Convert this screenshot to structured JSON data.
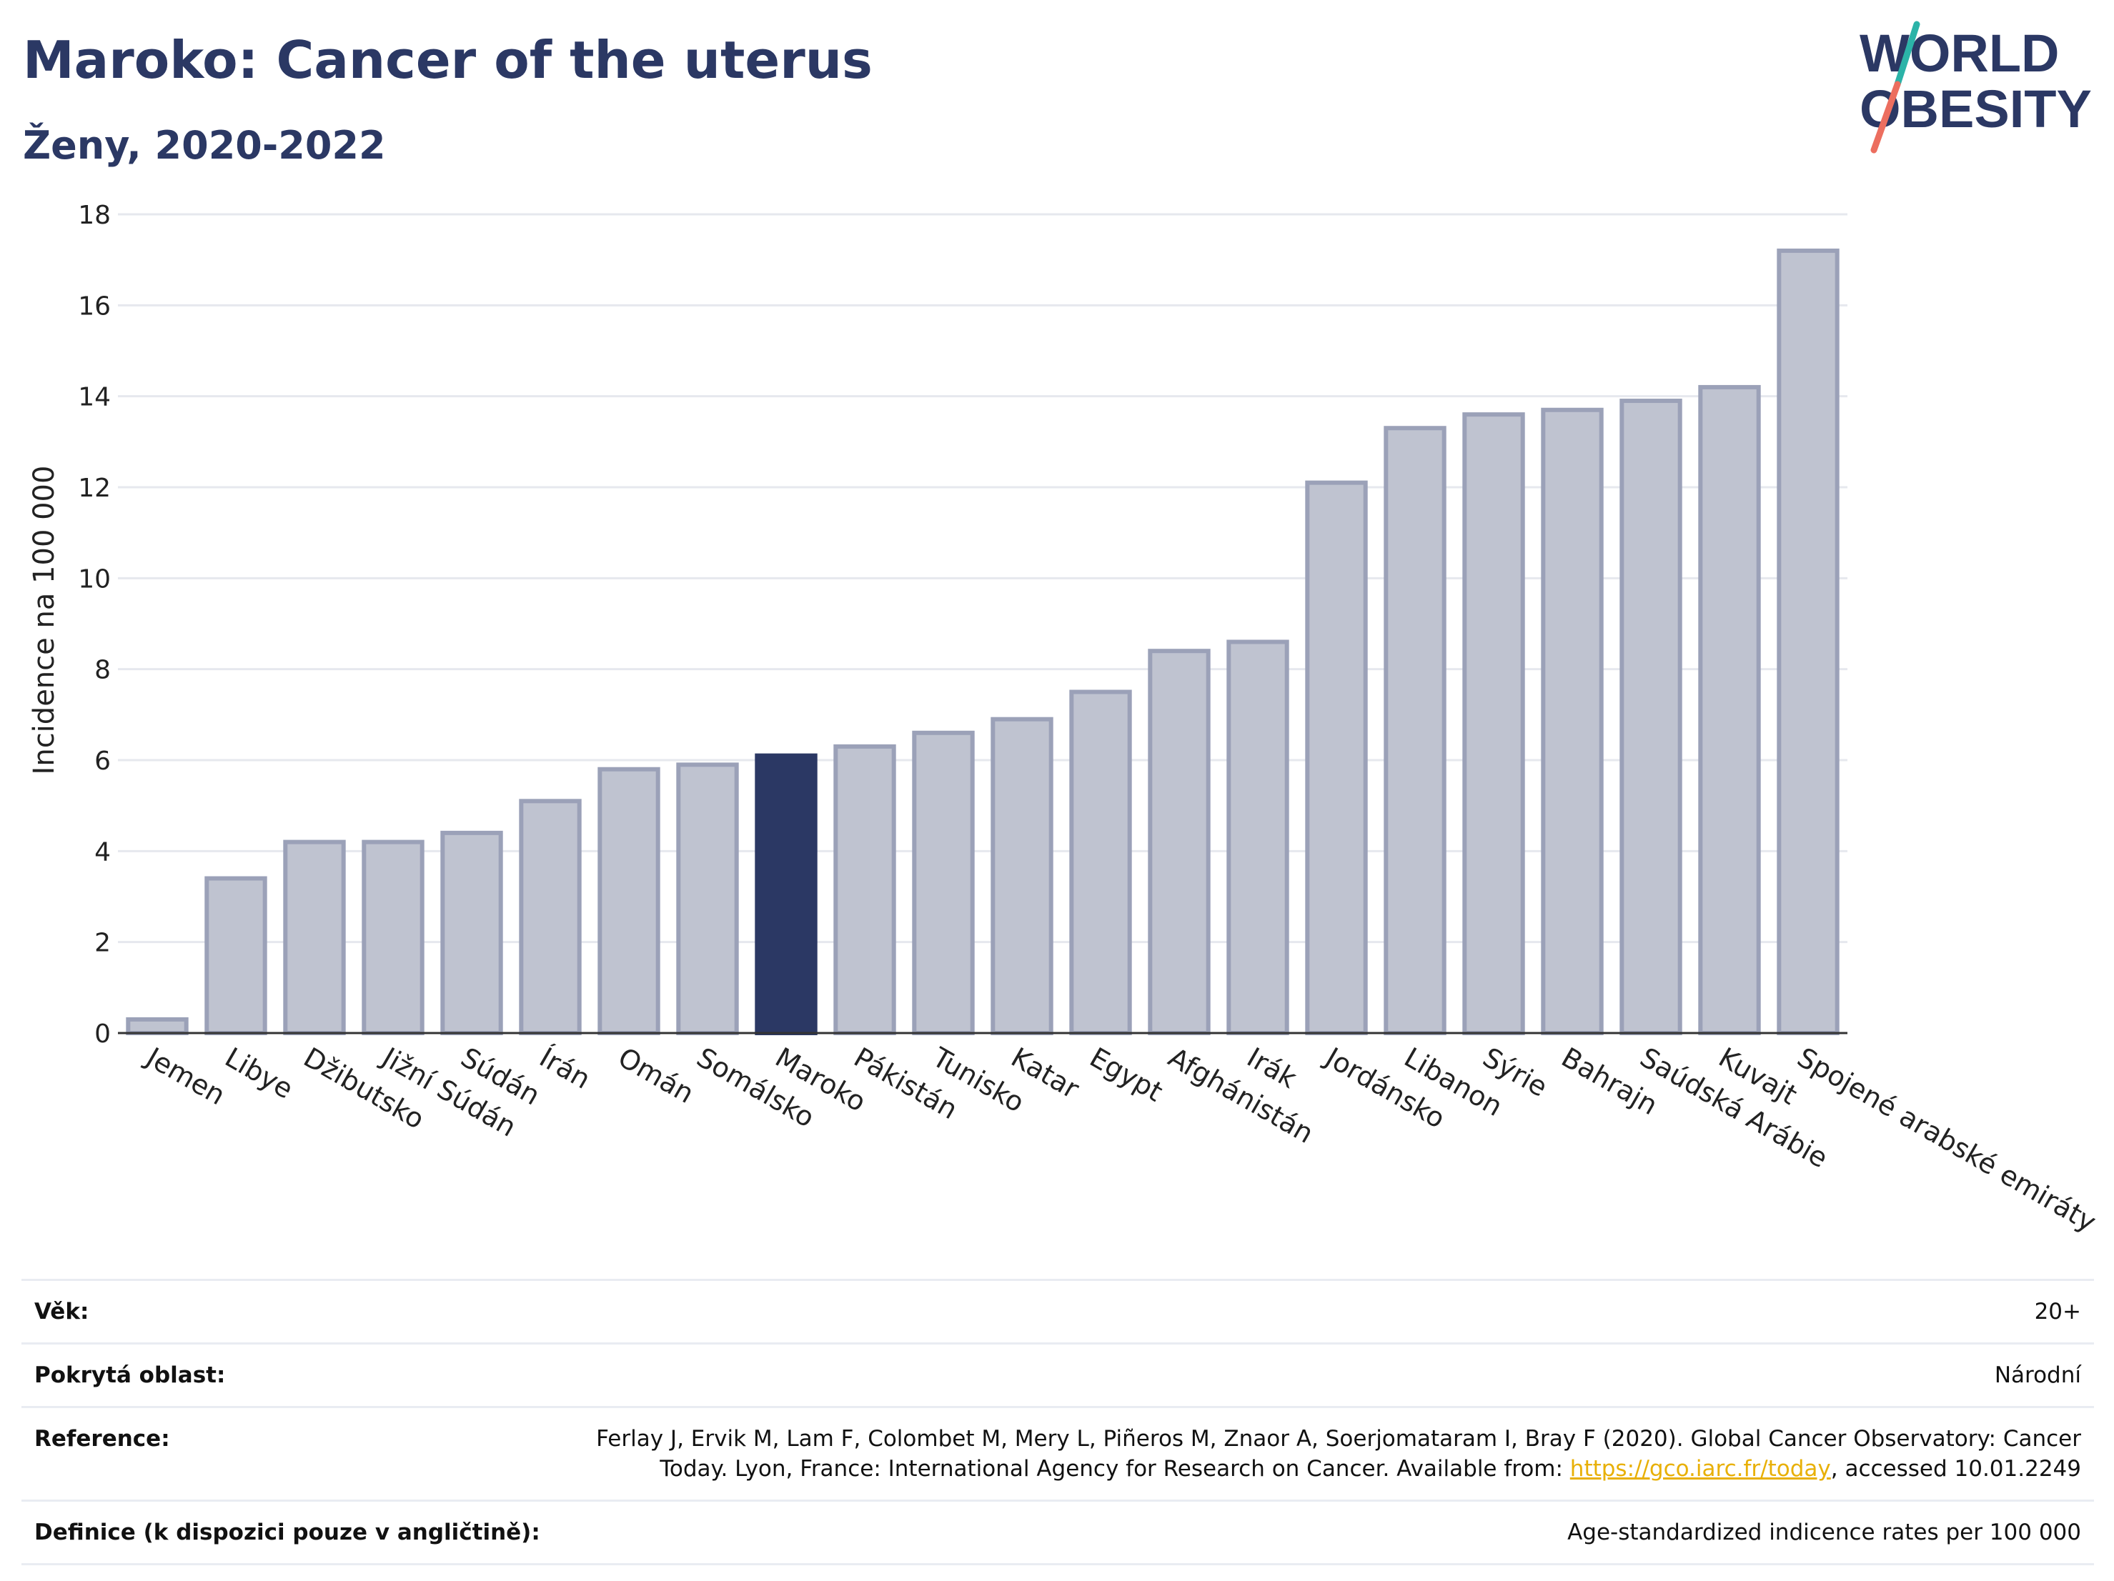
{
  "header": {
    "title": "Maroko: Cancer of the uterus",
    "subtitle": "Ženy, 2020-2022"
  },
  "logo": {
    "line1": "WORLD",
    "line2": "OBESITY"
  },
  "colors": {
    "highlight": "#2b3864",
    "bar_fill": "#bfc3d0",
    "bar_stroke": "#9ba1b8",
    "grid": "#e6e8ee",
    "logo_teal": "#2bb3a8",
    "logo_coral": "#ec6e5f"
  },
  "chart_data": {
    "type": "bar",
    "ylabel": "Incidence na 100 000",
    "xlabel": "",
    "ylim": [
      0,
      18
    ],
    "yticks": [
      0,
      2,
      4,
      6,
      8,
      10,
      12,
      14,
      16,
      18
    ],
    "grid": true,
    "highlight": "Maroko",
    "categories": [
      "Jemen",
      "Libye",
      "Džibutsko",
      "Jižní Súdán",
      "Súdán",
      "Írán",
      "Omán",
      "Somálsko",
      "Maroko",
      "Pákistán",
      "Tunisko",
      "Katar",
      "Egypt",
      "Afghánistán",
      "Irák",
      "Jordánsko",
      "Libanon",
      "Sýrie",
      "Bahrajn",
      "Saúdská Arábie",
      "Kuvajt",
      "Spojené arabské emiráty"
    ],
    "values": [
      0.3,
      3.4,
      4.2,
      4.2,
      4.4,
      5.1,
      5.8,
      5.9,
      6.1,
      6.3,
      6.6,
      6.9,
      7.5,
      8.4,
      8.6,
      12.1,
      13.3,
      13.6,
      13.7,
      13.9,
      14.2,
      17.2
    ]
  },
  "info": {
    "age": {
      "label": "Věk:",
      "value": "20+"
    },
    "coverage": {
      "label": "Pokrytá oblast:",
      "value": "Národní"
    },
    "reference": {
      "label": "Reference:",
      "text_line1": "Ferlay J, Ervik M, Lam F, Colombet M, Mery L, Piñeros M, Znaor A, Soerjomataram I, Bray F (2020). Global Cancer Observatory: Cancer",
      "text_line2_prefix": "Today. Lyon, France: International Agency for Research on Cancer. Available from: ",
      "link": "https://gco.iarc.fr/today",
      "text_line2_suffix": ", accessed 10.01.2249"
    },
    "definition": {
      "label": "Definice (k dispozici pouze v angličtině):",
      "value": "Age-standardized indicence rates per 100 000"
    }
  }
}
